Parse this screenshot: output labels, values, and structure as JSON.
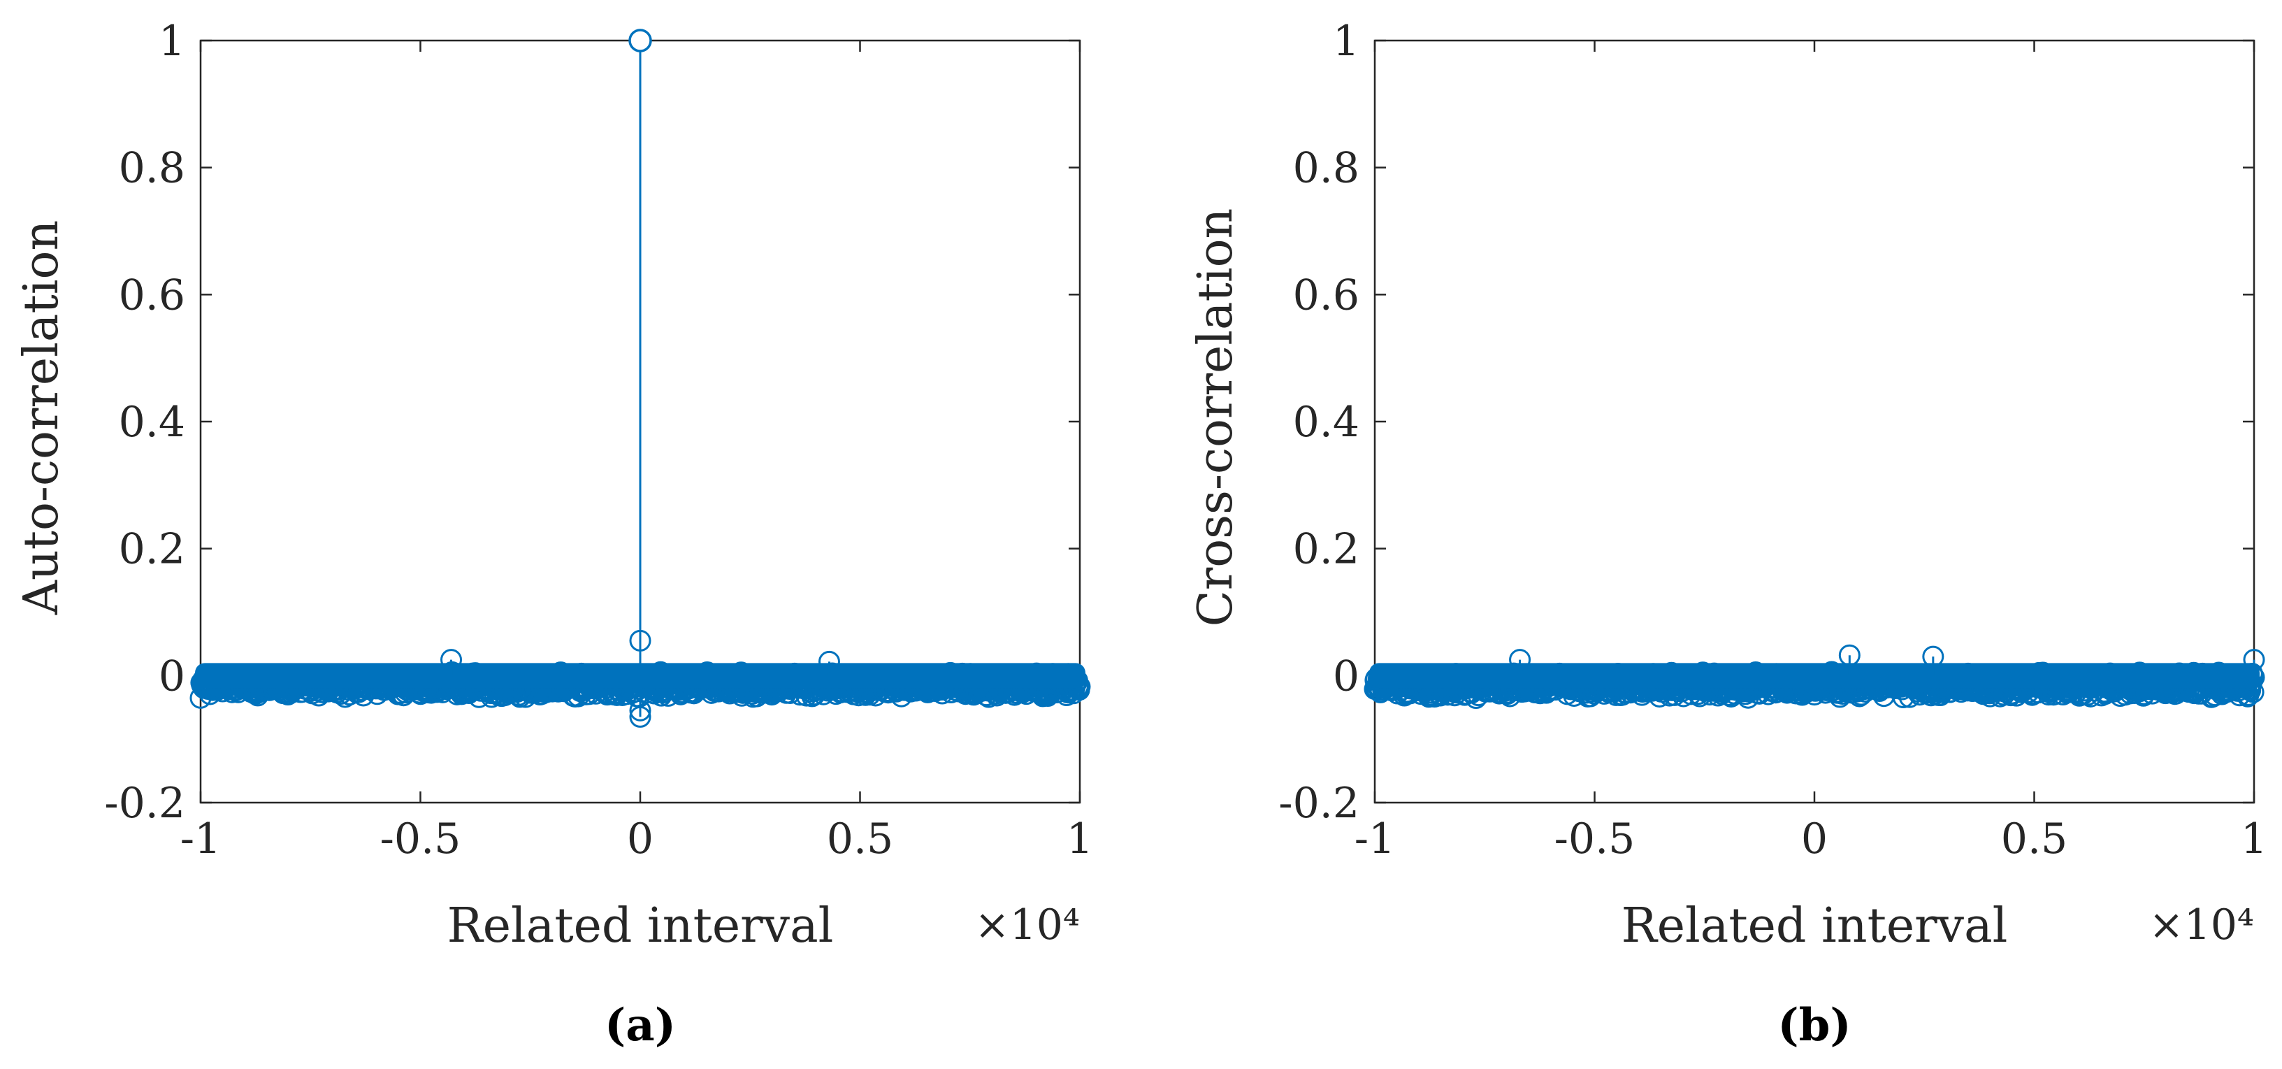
{
  "colors": {
    "series": "#0072BD",
    "axis": "#262626",
    "background": "#ffffff"
  },
  "panels": [
    {
      "caption": "(a)",
      "exponent_label": "×10⁴",
      "chart_data": {
        "type": "stem",
        "title": "",
        "xlabel": "Related interval",
        "ylabel": "Auto-correlation",
        "xlim": [
          -10000,
          10000
        ],
        "ylim": [
          -0.2,
          1
        ],
        "x_multiplier": 10000,
        "xticks": [
          -1,
          -0.5,
          0,
          0.5,
          1
        ],
        "xtick_labels": [
          "-1",
          "-0.5",
          "0",
          "0.5",
          "1"
        ],
        "yticks": [
          -0.2,
          0,
          0.2,
          0.4,
          0.6,
          0.8,
          1
        ],
        "ytick_labels": [
          "-0.2",
          "0",
          "0.2",
          "0.4",
          "0.6",
          "0.8",
          "1"
        ],
        "grid": false,
        "series": [
          {
            "name": "Auto-correlation",
            "marker": "circle",
            "noise_band": [
              -0.03,
              0.03
            ],
            "peak": {
              "x": 0,
              "y": 1
            },
            "notable_points": [
              {
                "x": 0,
                "y": 0.055
              },
              {
                "x": 0,
                "y": -0.055
              },
              {
                "x": 0,
                "y": -0.065
              },
              {
                "x": -4300,
                "y": 0.025
              },
              {
                "x": 4300,
                "y": 0.022
              }
            ]
          }
        ]
      }
    },
    {
      "caption": "(b)",
      "exponent_label": "×10⁴",
      "chart_data": {
        "type": "stem",
        "title": "",
        "xlabel": "Related interval",
        "ylabel": "Cross-correlation",
        "xlim": [
          -10000,
          10000
        ],
        "ylim": [
          -0.2,
          1
        ],
        "x_multiplier": 10000,
        "xticks": [
          -1,
          -0.5,
          0,
          0.5,
          1
        ],
        "xtick_labels": [
          "-1",
          "-0.5",
          "0",
          "0.5",
          "1"
        ],
        "yticks": [
          -0.2,
          0,
          0.2,
          0.4,
          0.6,
          0.8,
          1
        ],
        "ytick_labels": [
          "-0.2",
          "0",
          "0.2",
          "0.4",
          "0.6",
          "0.8",
          "1"
        ],
        "grid": false,
        "series": [
          {
            "name": "Cross-correlation",
            "marker": "circle",
            "noise_band": [
              -0.03,
              0.03
            ],
            "peak": null,
            "notable_points": [
              {
                "x": 800,
                "y": 0.032
              },
              {
                "x": 2700,
                "y": 0.03
              },
              {
                "x": -6700,
                "y": 0.025
              },
              {
                "x": 10000,
                "y": 0.025
              },
              {
                "x": 0,
                "y": -0.03
              }
            ]
          }
        ]
      }
    }
  ]
}
